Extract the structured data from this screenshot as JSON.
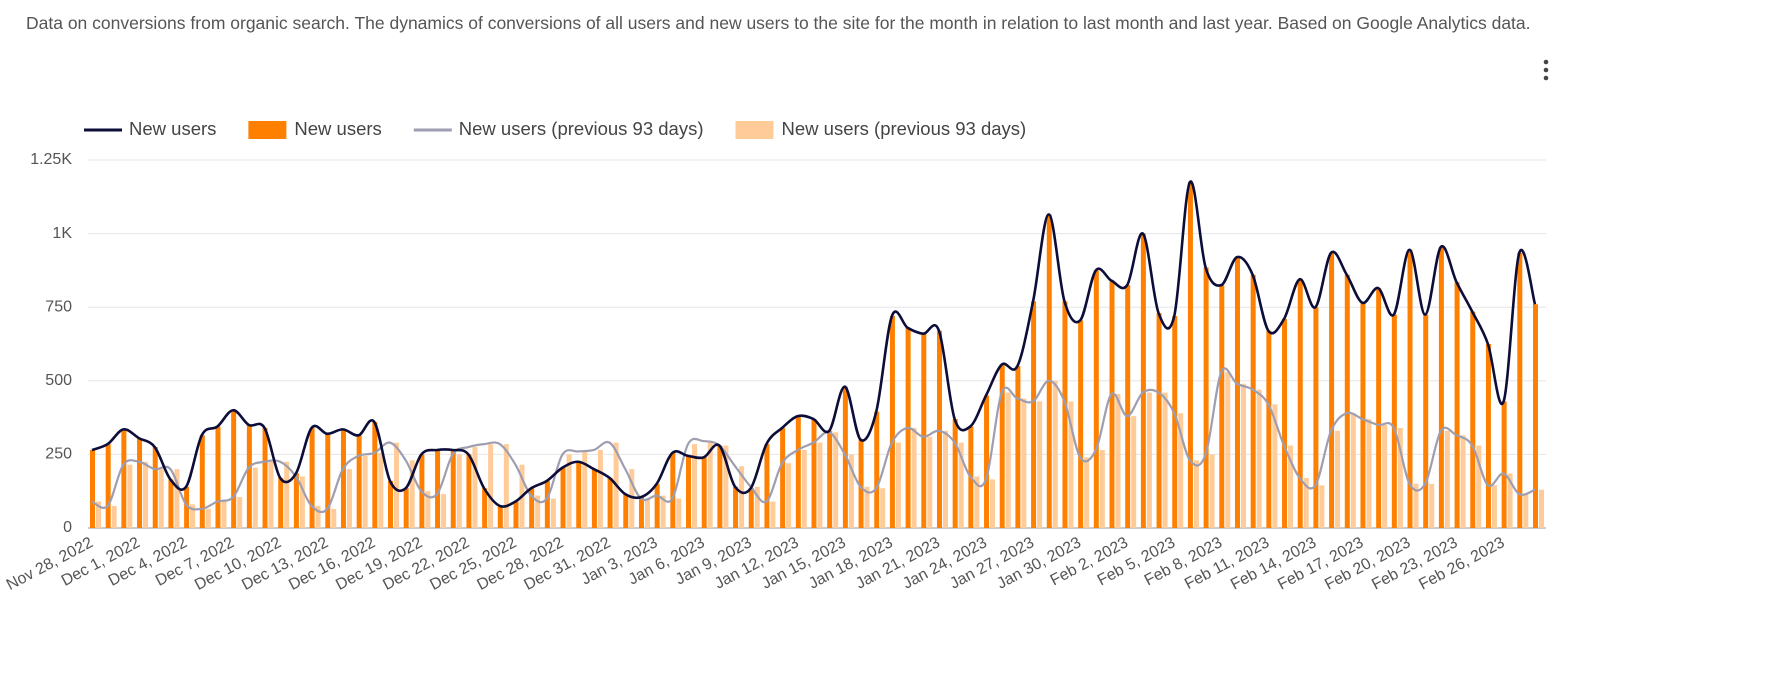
{
  "description": "Data on conversions from organic search. The dynamics of conversions of all users and new users to the site for the month in relation to last month and last year. Based on Google Analytics data.",
  "chart_data": {
    "type": "bar-line",
    "categories": [
      "Nov 28, 2022",
      null,
      null,
      "Dec 1, 2022",
      null,
      null,
      "Dec 4, 2022",
      null,
      null,
      "Dec 7, 2022",
      null,
      null,
      "Dec 10, 2022",
      null,
      null,
      "Dec 13, 2022",
      null,
      null,
      "Dec 16, 2022",
      null,
      null,
      "Dec 19, 2022",
      null,
      null,
      "Dec 22, 2022",
      null,
      null,
      "Dec 25, 2022",
      null,
      null,
      "Dec 28, 2022",
      null,
      null,
      "Dec 31, 2022",
      null,
      null,
      "Jan 3, 2023",
      null,
      null,
      "Jan 6, 2023",
      null,
      null,
      "Jan 9, 2023",
      null,
      null,
      "Jan 12, 2023",
      null,
      null,
      "Jan 15, 2023",
      null,
      null,
      "Jan 18, 2023",
      null,
      null,
      "Jan 21, 2023",
      null,
      null,
      "Jan 24, 2023",
      null,
      null,
      "Jan 27, 2023",
      null,
      null,
      "Jan 30, 2023",
      null,
      null,
      "Feb 2, 2023",
      null,
      null,
      "Feb 5, 2023",
      null,
      null,
      "Feb 8, 2023",
      null,
      null,
      "Feb 11, 2023",
      null,
      null,
      "Feb 14, 2023",
      null,
      null,
      "Feb 17, 2023",
      null,
      null,
      "Feb 20, 2023",
      null,
      null,
      "Feb 23, 2023",
      null,
      null,
      "Feb 26, 2023",
      null,
      null
    ],
    "series": [
      {
        "name": "New users",
        "line_color": "#0d0d3a",
        "bar_color": "#ff8000",
        "values": [
          265,
          285,
          335,
          305,
          275,
          165,
          140,
          315,
          345,
          400,
          350,
          340,
          170,
          185,
          340,
          320,
          335,
          315,
          360,
          160,
          135,
          250,
          265,
          265,
          250,
          135,
          75,
          90,
          135,
          160,
          205,
          225,
          200,
          170,
          115,
          105,
          150,
          255,
          245,
          240,
          280,
          140,
          135,
          285,
          340,
          380,
          370,
          330,
          480,
          300,
          395,
          720,
          680,
          660,
          670,
          370,
          345,
          450,
          555,
          550,
          770,
          1065,
          770,
          705,
          875,
          840,
          825,
          1000,
          730,
          720,
          1175,
          885,
          825,
          920,
          860,
          670,
          710,
          845,
          750,
          935,
          860,
          765,
          815,
          725,
          945,
          725,
          955,
          835,
          735,
          625,
          430,
          935,
          760
        ]
      },
      {
        "name": "New users (previous 93 days)",
        "line_color": "#9e9eb0",
        "bar_color": "#ffcc99",
        "values": [
          90,
          75,
          215,
          225,
          200,
          200,
          80,
          65,
          90,
          105,
          205,
          225,
          225,
          175,
          75,
          65,
          200,
          245,
          255,
          290,
          230,
          125,
          115,
          250,
          275,
          285,
          285,
          215,
          110,
          100,
          250,
          260,
          265,
          290,
          200,
          100,
          110,
          100,
          285,
          295,
          280,
          210,
          140,
          90,
          220,
          265,
          290,
          325,
          250,
          140,
          135,
          290,
          340,
          310,
          330,
          290,
          175,
          165,
          460,
          440,
          430,
          500,
          430,
          240,
          265,
          455,
          380,
          460,
          460,
          390,
          230,
          250,
          530,
          490,
          470,
          420,
          280,
          170,
          145,
          330,
          390,
          370,
          350,
          340,
          150,
          150,
          330,
          315,
          280,
          145,
          185,
          115,
          130
        ]
      }
    ],
    "ylim": [
      0,
      1250
    ],
    "yticks": [
      0,
      250,
      500,
      750,
      {
        "value": 1000,
        "label": "1K"
      },
      {
        "value": 1250,
        "label": "1.25K"
      }
    ],
    "grid": true
  }
}
